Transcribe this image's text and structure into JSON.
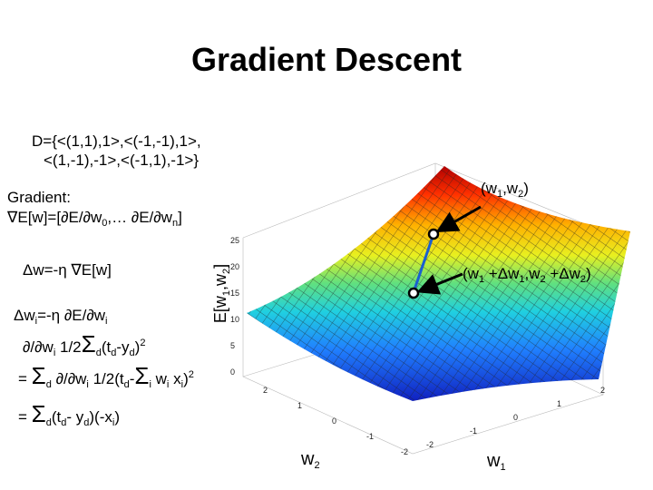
{
  "title": "Gradient Descent",
  "dataset": {
    "line1": "D={<(1,1),1>,<(-1,-1),1>,",
    "line2": "<(1,-1),-1>,<(-1,1),-1>}"
  },
  "gradient": {
    "label": "Gradient:",
    "formula": [
      "∇E[w]=[∂E/∂w",
      "0",
      ",… ∂E/∂w",
      "n",
      "]"
    ]
  },
  "update": "Δw=-η ∇E[w]",
  "component_update": [
    "Δw",
    "i",
    "=-η ∂E/∂w",
    "i"
  ],
  "derivation": [
    [
      "∂/∂w",
      "i",
      " 1/2",
      "Σ",
      "d",
      "(t",
      "d",
      "-y",
      "d",
      ")",
      "2"
    ],
    [
      "= ",
      "Σ",
      "d",
      " ∂/∂w",
      "i",
      " 1/2(t",
      "d",
      "-",
      "Σ",
      "i",
      " w",
      "i",
      " x",
      "i",
      ")",
      "2"
    ],
    [
      "= ",
      "Σ",
      "d",
      "(t",
      "d",
      "- y",
      "d",
      ")(-x",
      "i",
      ")"
    ]
  ],
  "plot": {
    "z_label": [
      "E[w",
      "1",
      ",w",
      "2",
      "]"
    ],
    "w2_label": [
      "w",
      "2"
    ],
    "w1_label": [
      "w",
      "1"
    ],
    "z_ticks": [
      "0",
      "5",
      "10",
      "15",
      "20",
      "25"
    ],
    "w2_ticks": [
      "2",
      "1",
      "0",
      "-1",
      "-2"
    ],
    "w1_ticks": [
      "-2",
      "-1",
      "0",
      "1",
      "2"
    ],
    "start_point": [
      "(w",
      "1",
      ",w",
      "2",
      ")"
    ],
    "next_point": [
      "(w",
      "1",
      " +Δw",
      "1",
      ",w",
      "2",
      " +Δw",
      "2",
      ")"
    ]
  }
}
